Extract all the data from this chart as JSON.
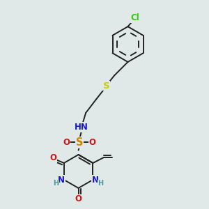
{
  "bg_color": "#e0e8e8",
  "bond_color": "#222222",
  "bond_width": 1.4,
  "atom_colors": {
    "N": "#1515cc",
    "O": "#cc1515",
    "S_sulfo": "#cc8800",
    "S_thio": "#cccc00",
    "Cl": "#33cc00",
    "H_label": "#4d9999"
  },
  "font_size": 8.5,
  "figsize": [
    3.0,
    3.0
  ],
  "dpi": 100,
  "xlim": [
    -1.0,
    5.5
  ],
  "ylim": [
    -4.5,
    4.0
  ]
}
